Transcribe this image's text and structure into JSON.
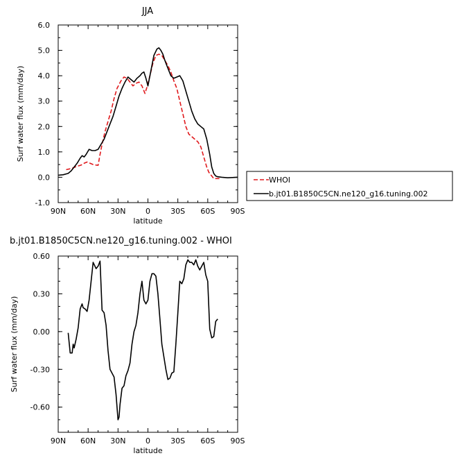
{
  "chart_data": [
    {
      "type": "line",
      "title": "JJA",
      "xlabel": "latitude",
      "ylabel": "Surf water flux (mm/day)",
      "xlim": [
        90,
        -90
      ],
      "ylim": [
        -1.0,
        6.0
      ],
      "x_ticks": [
        {
          "value": 90,
          "label": "90N"
        },
        {
          "value": 60,
          "label": "60N"
        },
        {
          "value": 30,
          "label": "30N"
        },
        {
          "value": 0,
          "label": "0"
        },
        {
          "value": -30,
          "label": "30S"
        },
        {
          "value": -60,
          "label": "60S"
        },
        {
          "value": -90,
          "label": "90S"
        }
      ],
      "y_ticks": [
        {
          "value": 6.0,
          "label": "6.0"
        },
        {
          "value": 5.0,
          "label": "5.0"
        },
        {
          "value": 4.0,
          "label": "4.0"
        },
        {
          "value": 3.0,
          "label": "3.0"
        },
        {
          "value": 2.0,
          "label": "2.0"
        },
        {
          "value": 1.0,
          "label": "1.0"
        },
        {
          "value": 0.0,
          "label": "0.0"
        },
        {
          "value": -1.0,
          "label": "-1.0"
        }
      ],
      "legend": "right",
      "series": [
        {
          "name": "WHOI",
          "color": "#e0191c",
          "dash": "dashed",
          "x": [
            82,
            76,
            72,
            67,
            64,
            61,
            58,
            55,
            52,
            50,
            48,
            46,
            43,
            40,
            37,
            34,
            31,
            27,
            24,
            21,
            18,
            15,
            12,
            9,
            6,
            3,
            1,
            -2,
            -5,
            -8,
            -11,
            -14,
            -17,
            -20,
            -23,
            -26,
            -29,
            -32,
            -35,
            -38,
            -41,
            -44,
            -47,
            -50,
            -53,
            -56,
            -59,
            -61,
            -64,
            -66,
            -68,
            -70,
            -72
          ],
          "y": [
            0.3,
            0.35,
            0.42,
            0.48,
            0.55,
            0.6,
            0.55,
            0.5,
            0.48,
            0.47,
            0.9,
            1.3,
            1.8,
            2.2,
            2.6,
            3.1,
            3.5,
            3.8,
            3.95,
            3.9,
            3.75,
            3.6,
            3.7,
            3.75,
            3.6,
            3.3,
            3.55,
            4.0,
            4.5,
            4.8,
            4.85,
            4.8,
            4.6,
            4.4,
            4.15,
            3.8,
            3.5,
            3.0,
            2.5,
            2.0,
            1.7,
            1.6,
            1.5,
            1.4,
            1.2,
            0.8,
            0.4,
            0.2,
            0.05,
            -0.05,
            -0.05,
            -0.05,
            -0.05
          ]
        },
        {
          "name": "b.jt01.B1850C5CN.ne120_g16.tuning.002",
          "color": "#000000",
          "dash": "solid",
          "x": [
            90,
            85,
            80,
            77,
            74,
            71,
            68,
            66,
            64,
            62,
            59,
            56,
            53,
            50,
            47,
            44,
            41,
            38,
            35,
            32,
            29,
            26,
            23,
            20,
            17,
            14,
            11,
            8,
            6,
            4,
            2,
            0,
            -3,
            -6,
            -9,
            -11,
            -13,
            -15,
            -17,
            -19,
            -21,
            -23,
            -26,
            -29,
            -32,
            -35,
            -38,
            -41,
            -44,
            -47,
            -50,
            -53,
            -56,
            -59,
            -62,
            -64,
            -66,
            -68,
            -70,
            -74,
            -80,
            -90
          ],
          "y": [
            0.08,
            0.1,
            0.15,
            0.25,
            0.4,
            0.55,
            0.75,
            0.85,
            0.8,
            0.9,
            1.1,
            1.05,
            1.05,
            1.1,
            1.3,
            1.5,
            1.8,
            2.1,
            2.4,
            2.8,
            3.2,
            3.5,
            3.75,
            3.95,
            3.85,
            3.75,
            3.9,
            4.0,
            4.1,
            4.15,
            3.9,
            3.6,
            4.2,
            4.8,
            5.05,
            5.1,
            5.0,
            4.85,
            4.6,
            4.4,
            4.2,
            4.0,
            3.9,
            3.95,
            4.0,
            3.8,
            3.4,
            3.0,
            2.6,
            2.3,
            2.1,
            2.0,
            1.9,
            1.5,
            0.9,
            0.4,
            0.15,
            0.05,
            0.02,
            0.0,
            -0.02,
            0.0
          ]
        }
      ]
    },
    {
      "type": "line",
      "title": "b.jt01.B1850C5CN.ne120_g16.tuning.002 - WHOI",
      "xlabel": "latitude",
      "ylabel": "Surf water flux (mm/day)",
      "xlim": [
        90,
        -90
      ],
      "ylim": [
        -0.8,
        0.6
      ],
      "x_ticks": [
        {
          "value": 90,
          "label": "90N"
        },
        {
          "value": 60,
          "label": "60N"
        },
        {
          "value": 30,
          "label": "30N"
        },
        {
          "value": 0,
          "label": "0"
        },
        {
          "value": -30,
          "label": "30S"
        },
        {
          "value": -60,
          "label": "60S"
        },
        {
          "value": -90,
          "label": "90S"
        }
      ],
      "y_ticks": [
        {
          "value": 0.6,
          "label": "0.60"
        },
        {
          "value": 0.3,
          "label": "0.30"
        },
        {
          "value": 0.0,
          "label": "0.00"
        },
        {
          "value": -0.3,
          "label": "-0.30"
        },
        {
          "value": -0.6,
          "label": "-0.60"
        }
      ],
      "series": [
        {
          "name": "",
          "color": "#000000",
          "dash": "solid",
          "x": [
            80,
            78,
            76,
            75,
            74,
            72,
            70,
            68,
            66,
            65,
            63,
            61,
            59,
            57,
            55,
            52,
            50,
            48,
            46,
            44,
            42,
            40,
            38,
            36,
            34,
            32,
            30,
            29,
            28,
            26,
            24,
            22,
            20,
            18,
            16,
            14,
            12,
            10,
            8,
            6,
            4,
            2,
            0,
            -2,
            -4,
            -6,
            -8,
            -10,
            -12,
            -14,
            -16,
            -18,
            -20,
            -22,
            -24,
            -26,
            -28,
            -30,
            -32,
            -34,
            -36,
            -38,
            -40,
            -42,
            -44,
            -46,
            -48,
            -50,
            -52,
            -54,
            -56,
            -58,
            -60,
            -62,
            -64,
            -66,
            -68,
            -70
          ],
          "y": [
            -0.01,
            -0.17,
            -0.17,
            -0.1,
            -0.13,
            -0.06,
            0.03,
            0.18,
            0.22,
            0.19,
            0.18,
            0.16,
            0.25,
            0.4,
            0.55,
            0.5,
            0.52,
            0.56,
            0.17,
            0.15,
            0.05,
            -0.15,
            -0.3,
            -0.33,
            -0.36,
            -0.5,
            -0.7,
            -0.68,
            -0.58,
            -0.45,
            -0.43,
            -0.35,
            -0.31,
            -0.25,
            -0.1,
            0.0,
            0.05,
            0.15,
            0.3,
            0.4,
            0.25,
            0.22,
            0.25,
            0.4,
            0.46,
            0.46,
            0.44,
            0.3,
            0.1,
            -0.1,
            -0.2,
            -0.3,
            -0.38,
            -0.37,
            -0.33,
            -0.32,
            -0.1,
            0.15,
            0.4,
            0.38,
            0.42,
            0.53,
            0.57,
            0.55,
            0.55,
            0.53,
            0.57,
            0.52,
            0.49,
            0.52,
            0.55,
            0.45,
            0.4,
            0.02,
            -0.05,
            -0.04,
            0.08,
            0.1
          ]
        }
      ]
    }
  ]
}
